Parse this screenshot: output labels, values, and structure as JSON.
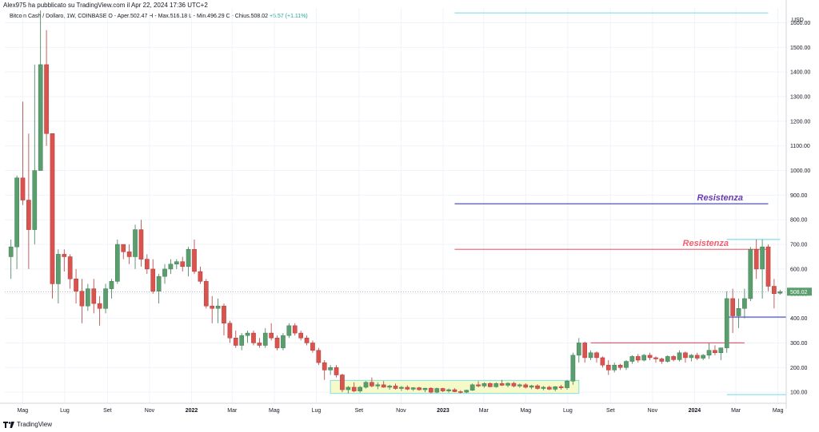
{
  "header": {
    "published_by": "Alex975 ha pubblicato su TradingView.com il Apr 22, 2024 17:36 UTC+2",
    "legend": "Bitcoin Cash / Dollaro, 1W, COINBASE  O - Aper.502.47  H - Max.516.18  L - Min.496.29  C - Chius.508.02",
    "legend_change": "+5.57 (+1.11%)"
  },
  "footer": {
    "brand": "TradingView",
    "logo_icon": "tradingview-logo-icon"
  },
  "chart_data": {
    "type": "candlestick",
    "symbol": "Bitcoin Cash / Dollaro",
    "interval": "1W",
    "exchange": "COINBASE",
    "currency_label": "USD",
    "y_ticks": [
      100,
      200,
      300,
      400,
      500,
      600,
      700,
      800,
      900,
      1000,
      1100,
      1200,
      1300,
      1400,
      1500,
      1600
    ],
    "y_tick_labels": [
      "100.00",
      "200.00",
      "300.00",
      "400.00",
      "500.00",
      "600.00",
      "700.00",
      "800.00",
      "900.00",
      "1000.00",
      "1100.00",
      "1200.00",
      "1300.00",
      "1400.00",
      "1500.00",
      "1600.00"
    ],
    "ylim": [
      55,
      1660
    ],
    "x_range": [
      "2021-04-05",
      "2024-05-13"
    ],
    "x_ticks": [
      {
        "date": "2021-05-01",
        "label": "Mag"
      },
      {
        "date": "2021-07-01",
        "label": "Lug"
      },
      {
        "date": "2021-09-01",
        "label": "Set"
      },
      {
        "date": "2021-11-01",
        "label": "Nov"
      },
      {
        "date": "2022-01-01",
        "label": "2022"
      },
      {
        "date": "2022-03-01",
        "label": "Mar"
      },
      {
        "date": "2022-05-01",
        "label": "Mag"
      },
      {
        "date": "2022-07-01",
        "label": "Lug"
      },
      {
        "date": "2022-09-01",
        "label": "Set"
      },
      {
        "date": "2022-11-01",
        "label": "Nov"
      },
      {
        "date": "2023-01-01",
        "label": "2023"
      },
      {
        "date": "2023-03-01",
        "label": "Mar"
      },
      {
        "date": "2023-05-01",
        "label": "Mag"
      },
      {
        "date": "2023-07-01",
        "label": "Lug"
      },
      {
        "date": "2023-09-01",
        "label": "Set"
      },
      {
        "date": "2023-11-01",
        "label": "Nov"
      },
      {
        "date": "2024-01-01",
        "label": "2024"
      },
      {
        "date": "2024-03-01",
        "label": "Mar"
      },
      {
        "date": "2024-05-01",
        "label": "Mag"
      }
    ],
    "candles_ohlc": [
      [
        650,
        720,
        560,
        690
      ],
      [
        690,
        980,
        600,
        970
      ],
      [
        970,
        1280,
        860,
        880
      ],
      [
        880,
        1150,
        600,
        760
      ],
      [
        760,
        1430,
        700,
        1000
      ],
      [
        1000,
        1650,
        1000,
        1430
      ],
      [
        1430,
        1570,
        1100,
        1150
      ],
      [
        1150,
        1120,
        480,
        540
      ],
      [
        540,
        680,
        460,
        660
      ],
      [
        660,
        680,
        590,
        650
      ],
      [
        650,
        660,
        520,
        560
      ],
      [
        560,
        600,
        460,
        510
      ],
      [
        510,
        560,
        380,
        450
      ],
      [
        450,
        540,
        430,
        520
      ],
      [
        520,
        560,
        420,
        460
      ],
      [
        460,
        490,
        370,
        440
      ],
      [
        440,
        540,
        420,
        520
      ],
      [
        520,
        560,
        480,
        550
      ],
      [
        550,
        720,
        540,
        700
      ],
      [
        700,
        700,
        640,
        670
      ],
      [
        670,
        700,
        620,
        650
      ],
      [
        650,
        780,
        600,
        760
      ],
      [
        760,
        800,
        610,
        640
      ],
      [
        640,
        660,
        580,
        600
      ],
      [
        600,
        640,
        500,
        510
      ],
      [
        510,
        580,
        460,
        570
      ],
      [
        570,
        620,
        540,
        600
      ],
      [
        600,
        640,
        580,
        620
      ],
      [
        620,
        640,
        600,
        630
      ],
      [
        630,
        650,
        590,
        610
      ],
      [
        610,
        690,
        570,
        680
      ],
      [
        680,
        720,
        580,
        590
      ],
      [
        590,
        610,
        540,
        550
      ],
      [
        550,
        560,
        440,
        450
      ],
      [
        450,
        490,
        380,
        440
      ],
      [
        440,
        480,
        380,
        450
      ],
      [
        450,
        460,
        330,
        380
      ],
      [
        380,
        390,
        300,
        320
      ],
      [
        320,
        350,
        280,
        290
      ],
      [
        290,
        340,
        270,
        330
      ],
      [
        330,
        350,
        300,
        340
      ],
      [
        340,
        350,
        290,
        300
      ],
      [
        300,
        320,
        280,
        290
      ],
      [
        290,
        360,
        280,
        340
      ],
      [
        340,
        380,
        310,
        320
      ],
      [
        320,
        330,
        270,
        280
      ],
      [
        280,
        340,
        270,
        330
      ],
      [
        330,
        380,
        320,
        370
      ],
      [
        370,
        380,
        330,
        340
      ],
      [
        340,
        350,
        310,
        320
      ],
      [
        320,
        330,
        290,
        300
      ],
      [
        300,
        310,
        260,
        270
      ],
      [
        270,
        280,
        210,
        220
      ],
      [
        220,
        230,
        150,
        190
      ],
      [
        190,
        210,
        170,
        200
      ],
      [
        200,
        210,
        160,
        170
      ],
      [
        170,
        175,
        100,
        110
      ],
      [
        110,
        125,
        95,
        120
      ],
      [
        120,
        140,
        100,
        105
      ],
      [
        105,
        125,
        98,
        120
      ],
      [
        120,
        145,
        115,
        140
      ],
      [
        140,
        160,
        120,
        125
      ],
      [
        125,
        140,
        112,
        130
      ],
      [
        130,
        145,
        118,
        120
      ],
      [
        120,
        130,
        110,
        125
      ],
      [
        125,
        135,
        110,
        115
      ],
      [
        115,
        125,
        105,
        120
      ],
      [
        120,
        128,
        108,
        112
      ],
      [
        112,
        120,
        105,
        118
      ],
      [
        118,
        122,
        106,
        110
      ],
      [
        110,
        118,
        100,
        116
      ],
      [
        116,
        120,
        95,
        100
      ],
      [
        100,
        118,
        96,
        115
      ],
      [
        115,
        118,
        100,
        105
      ],
      [
        105,
        115,
        98,
        110
      ],
      [
        110,
        116,
        100,
        102
      ],
      [
        102,
        108,
        95,
        100
      ],
      [
        100,
        110,
        96,
        108
      ],
      [
        108,
        135,
        105,
        130
      ],
      [
        130,
        145,
        120,
        125
      ],
      [
        125,
        140,
        118,
        135
      ],
      [
        135,
        140,
        120,
        122
      ],
      [
        122,
        140,
        118,
        135
      ],
      [
        135,
        150,
        125,
        128
      ],
      [
        128,
        140,
        120,
        136
      ],
      [
        136,
        142,
        120,
        125
      ],
      [
        125,
        135,
        118,
        130
      ],
      [
        130,
        136,
        115,
        120
      ],
      [
        120,
        130,
        112,
        126
      ],
      [
        126,
        132,
        110,
        115
      ],
      [
        115,
        125,
        108,
        120
      ],
      [
        120,
        126,
        108,
        112
      ],
      [
        112,
        125,
        104,
        122
      ],
      [
        122,
        130,
        110,
        118
      ],
      [
        118,
        150,
        110,
        145
      ],
      [
        145,
        260,
        130,
        250
      ],
      [
        250,
        320,
        220,
        300
      ],
      [
        300,
        305,
        220,
        240
      ],
      [
        240,
        270,
        230,
        260
      ],
      [
        260,
        265,
        220,
        240
      ],
      [
        240,
        245,
        200,
        210
      ],
      [
        210,
        230,
        170,
        190
      ],
      [
        190,
        220,
        180,
        210
      ],
      [
        210,
        215,
        190,
        200
      ],
      [
        200,
        230,
        190,
        225
      ],
      [
        225,
        250,
        215,
        245
      ],
      [
        245,
        255,
        220,
        230
      ],
      [
        230,
        255,
        225,
        250
      ],
      [
        250,
        260,
        230,
        240
      ],
      [
        240,
        245,
        220,
        235
      ],
      [
        235,
        240,
        215,
        225
      ],
      [
        225,
        250,
        220,
        245
      ],
      [
        245,
        250,
        225,
        232
      ],
      [
        232,
        270,
        225,
        260
      ],
      [
        260,
        265,
        220,
        240
      ],
      [
        240,
        255,
        225,
        250
      ],
      [
        250,
        260,
        230,
        238
      ],
      [
        238,
        255,
        230,
        250
      ],
      [
        250,
        300,
        235,
        270
      ],
      [
        270,
        290,
        250,
        260
      ],
      [
        260,
        270,
        230,
        280
      ],
      [
        280,
        510,
        260,
        480
      ],
      [
        480,
        520,
        340,
        410
      ],
      [
        410,
        480,
        360,
        440
      ],
      [
        440,
        520,
        400,
        480
      ],
      [
        480,
        690,
        470,
        680
      ],
      [
        680,
        720,
        560,
        600
      ],
      [
        600,
        720,
        480,
        690
      ],
      [
        690,
        700,
        510,
        530
      ],
      [
        530,
        560,
        440,
        500
      ],
      [
        502,
        516,
        496,
        508
      ]
    ],
    "annotations": [
      {
        "text": "Resistenza",
        "level": 865,
        "color": "#673ab7"
      },
      {
        "text": "Resistenza",
        "level": 680,
        "color": "#f06070"
      }
    ],
    "horizontal_lines": [
      {
        "level": 1640,
        "color": "#80deea"
      },
      {
        "level": 865,
        "color": "#3c40b0"
      },
      {
        "level": 680,
        "color": "#f07080"
      },
      {
        "level": 720,
        "color": "#80deea"
      },
      {
        "level": 405,
        "color": "#3c40b0"
      },
      {
        "level": 300,
        "color": "#f05060"
      },
      {
        "level": 90,
        "color": "#80deea"
      }
    ],
    "accumulation_box": {
      "y_bottom": 95,
      "y_top": 148,
      "fill": "#f6f9c8",
      "border": "#80deea"
    },
    "last_price": "508.02",
    "colors": {
      "up": "#26a69a",
      "down": "#ef5350",
      "up_fill": "#5b9e6e",
      "down_fill": "#d9534f"
    }
  }
}
